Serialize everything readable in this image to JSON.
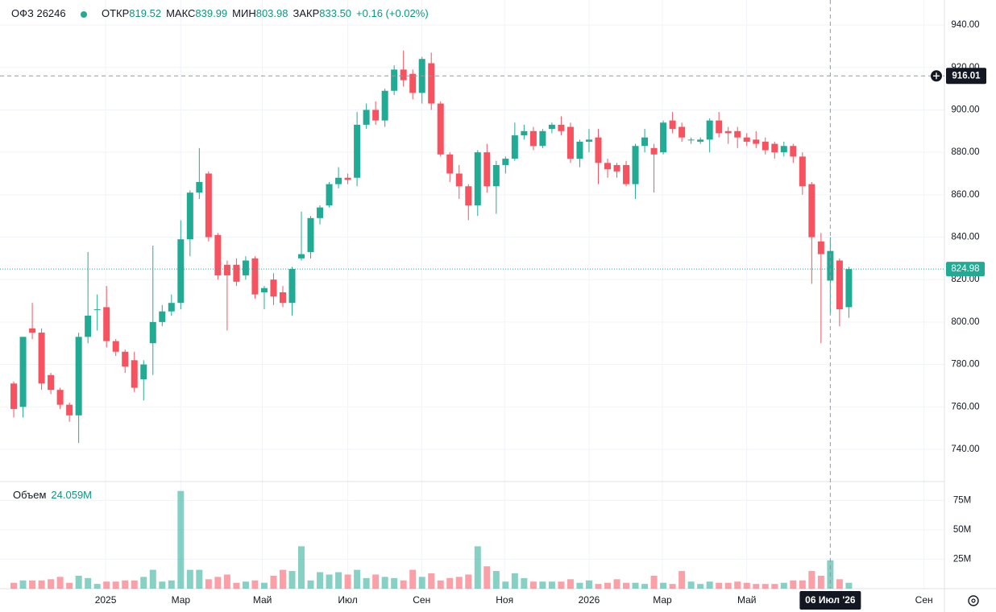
{
  "chart_data": {
    "type": "candlestick",
    "title": "ОФЗ 26246",
    "legend": {
      "open_label": "ОТКР",
      "open": "819.52",
      "high_label": "МАКС",
      "high": "839.99",
      "low_label": "МИН",
      "low": "803.98",
      "close_label": "ЗАКР",
      "close": "833.50",
      "change": "+0.16 (+0.02%)"
    },
    "open": [
      771,
      760,
      797,
      795,
      775,
      768,
      761,
      756,
      793,
      806,
      807,
      791,
      786,
      782,
      773,
      790,
      800,
      805,
      809,
      839,
      861,
      870,
      841,
      827,
      827,
      822,
      830,
      814,
      820,
      814,
      809,
      830,
      833,
      849,
      855,
      865,
      868,
      868,
      893,
      900,
      895,
      909,
      919,
      917,
      908,
      922,
      903,
      879,
      870,
      864,
      855,
      880,
      864,
      874,
      877,
      888,
      890,
      883,
      891,
      893,
      892,
      877,
      885,
      887,
      875,
      874,
      874,
      865,
      883,
      882,
      880,
      895,
      892,
      886,
      885,
      886,
      895,
      890,
      890,
      887,
      886,
      885,
      884,
      880,
      883,
      878,
      865,
      838,
      819.52,
      829,
      807
    ],
    "high": [
      772,
      793,
      809,
      797,
      776,
      769,
      762,
      795,
      833,
      813,
      817,
      792,
      787,
      786,
      782,
      836,
      808,
      813,
      848,
      862,
      882,
      871,
      842,
      829,
      830,
      831,
      831,
      817,
      823,
      817,
      826,
      852,
      850,
      855,
      866,
      873,
      870,
      899,
      903,
      904,
      910,
      921,
      928,
      919,
      925,
      927,
      904,
      880,
      874,
      865,
      881,
      884,
      876,
      878,
      894,
      893,
      892,
      891,
      894,
      897,
      894,
      886,
      891,
      891,
      877,
      875,
      876,
      884,
      891,
      884,
      895,
      899,
      894,
      887,
      887,
      896,
      899,
      892,
      892,
      889,
      890,
      887,
      885,
      885,
      884,
      880,
      866,
      842,
      839.99,
      830,
      826
    ],
    "low": [
      755,
      755,
      792,
      768,
      766,
      759,
      753,
      743,
      790,
      796,
      788,
      784,
      776,
      767,
      763,
      775,
      798,
      803,
      806,
      831,
      858,
      838,
      820,
      796,
      817,
      820,
      811,
      806,
      808,
      807,
      803,
      829,
      830,
      846,
      854,
      863,
      865,
      864,
      891,
      893,
      892,
      907,
      911,
      905,
      903,
      900,
      878,
      866,
      858,
      848,
      850,
      861,
      851,
      870,
      876,
      886,
      881,
      882,
      889,
      888,
      875,
      873,
      880,
      865,
      868,
      868,
      864,
      858,
      880,
      861,
      879,
      889,
      885,
      884,
      884,
      880,
      887,
      884,
      882,
      883,
      882,
      879,
      877,
      878,
      875,
      860,
      818,
      790,
      803.98,
      798,
      802
    ],
    "close": [
      759,
      793,
      795,
      771,
      768,
      761,
      756,
      793,
      803,
      806,
      791,
      786,
      779,
      769,
      780,
      800,
      805,
      809,
      839,
      861,
      866,
      840,
      822,
      822,
      819,
      829,
      813,
      816,
      812,
      809,
      825,
      832,
      849,
      854,
      865,
      868,
      867,
      893,
      900,
      895,
      909,
      919,
      914,
      908,
      924,
      903,
      879,
      870,
      864,
      855,
      880,
      864,
      874,
      877,
      888,
      890,
      883,
      890,
      893,
      890,
      877,
      885,
      886,
      875,
      872,
      871,
      865,
      883,
      887,
      879,
      894,
      891,
      887,
      886,
      886,
      895,
      889,
      889,
      887,
      885,
      884,
      881,
      880,
      883,
      878,
      864,
      840,
      832,
      833.5,
      806,
      824.98
    ],
    "up_color": "#22ab94",
    "down_color": "#f7525f",
    "volume": {
      "name": "Объем",
      "label": "24.059M",
      "values": [
        5000000,
        7000000,
        7000000,
        7000000,
        8000000,
        10000000,
        5000000,
        11000000,
        9000000,
        4000000,
        6000000,
        6000000,
        7000000,
        7000000,
        10000000,
        16000000,
        6000000,
        7000000,
        83000000,
        16000000,
        16000000,
        8000000,
        10000000,
        12000000,
        5000000,
        6000000,
        7000000,
        5000000,
        11000000,
        16000000,
        15000000,
        36000000,
        7000000,
        14000000,
        12000000,
        14000000,
        12000000,
        16000000,
        9000000,
        12000000,
        10000000,
        9000000,
        7000000,
        16000000,
        10000000,
        13000000,
        7000000,
        9000000,
        10000000,
        12000000,
        36000000,
        19000000,
        15000000,
        6000000,
        13000000,
        9000000,
        6000000,
        6000000,
        6000000,
        6000000,
        8000000,
        5000000,
        7000000,
        4000000,
        5000000,
        8000000,
        5000000,
        5000000,
        4000000,
        11000000,
        5000000,
        4000000,
        15000000,
        6000000,
        4000000,
        6000000,
        5000000,
        5000000,
        6000000,
        5000000,
        4000000,
        4000000,
        4000000,
        5000000,
        7000000,
        7000000,
        15000000,
        11000000,
        24059000,
        8000000,
        5000000
      ],
      "ylim": [
        0,
        91000000
      ],
      "yticks": [
        {
          "value": 25000000,
          "label": "25M"
        },
        {
          "value": 50000000,
          "label": "50M"
        },
        {
          "value": 75000000,
          "label": "75M"
        }
      ]
    },
    "xlim": [
      -1.48,
      100.3
    ],
    "xticks": [
      {
        "value": 9.9,
        "label": "2025"
      },
      {
        "value": 18.0,
        "label": "Мар"
      },
      {
        "value": 26.8,
        "label": "Май"
      },
      {
        "value": 36.0,
        "label": "Июл"
      },
      {
        "value": 43.96,
        "label": "Сен"
      },
      {
        "value": 52.9,
        "label": "Ноя"
      },
      {
        "value": 62.0,
        "label": "2026"
      },
      {
        "value": 69.9,
        "label": "Мар"
      },
      {
        "value": 79.0,
        "label": "Май"
      },
      {
        "value": 98.1,
        "label": "Сен"
      }
    ],
    "ylim": [
      724.8,
      951.8
    ],
    "yticks": [
      {
        "value": 740,
        "label": "740.00"
      },
      {
        "value": 760,
        "label": "760.00"
      },
      {
        "value": 780,
        "label": "780.00"
      },
      {
        "value": 800,
        "label": "800.00"
      },
      {
        "value": 820,
        "label": "820.00"
      },
      {
        "value": 840,
        "label": "840.00"
      },
      {
        "value": 860,
        "label": "860.00"
      },
      {
        "value": 880,
        "label": "880.00"
      },
      {
        "value": 900,
        "label": "900.00"
      },
      {
        "value": 920,
        "label": "920.00"
      },
      {
        "value": 940,
        "label": "940.00"
      }
    ],
    "grid": true,
    "last_price": {
      "value": 824.98,
      "label": "824.98"
    },
    "crosshair": {
      "price": {
        "value": 916.01,
        "label": "916.01"
      },
      "index": 88,
      "date_label": "06 Июл '26"
    }
  }
}
